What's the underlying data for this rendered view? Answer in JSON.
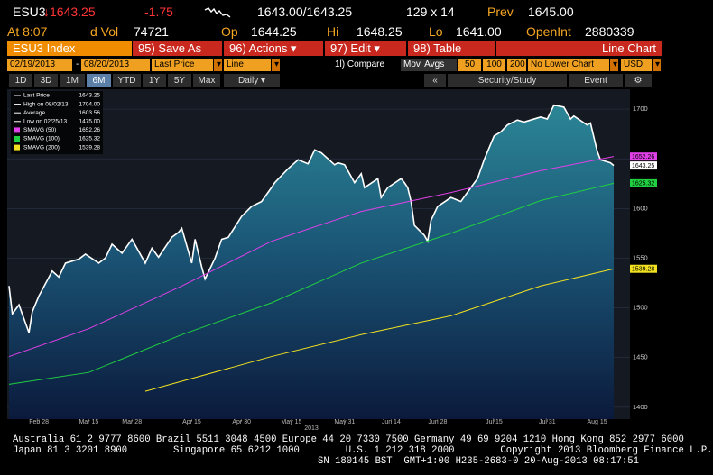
{
  "quote": {
    "ticker": "ESU3",
    "last": "↓1643.25",
    "change": "-1.75",
    "bid_ask": "1643.00/1643.25",
    "size": "129 x 14",
    "prev_label": "Prev",
    "prev": "1645.00",
    "time": "At 8:07",
    "vol_label": "d Vol",
    "vol": "74721",
    "op_label": "Op",
    "op": "1644.25",
    "hi_label": "Hi",
    "hi": "1648.25",
    "lo_label": "Lo",
    "lo": "1641.00",
    "oi_label": "OpenInt",
    "oi": "2880339"
  },
  "menu": {
    "security": "ESU3 Index",
    "buttons": [
      "95) Save As",
      "96) Actions ▾",
      "97) Edit ▾",
      "98) Table"
    ],
    "view": "Line Chart"
  },
  "controls": {
    "start": "02/19/2013",
    "dash": "-",
    "end": "08/20/2013",
    "field": "Last Price",
    "style": "Line",
    "compare": "1l) Compare",
    "mov_avgs": "Mov. Avgs",
    "ma": [
      "50",
      "100",
      "200"
    ],
    "lower": "No Lower Chart",
    "currency": "USD"
  },
  "periods": {
    "items": [
      "1D",
      "3D",
      "1M",
      "6M",
      "YTD",
      "1Y",
      "5Y",
      "Max"
    ],
    "selected": "6M",
    "freq": "Daily ▾",
    "collapse": "«",
    "study": "Security/Study",
    "event": "Event",
    "settings": "⚙"
  },
  "chart_data": {
    "type": "line",
    "xlim": [
      "2013-02-19",
      "2013-08-20"
    ],
    "xticks": [
      {
        "value": "2013-02-28",
        "label": "Feb 28"
      },
      {
        "value": "2013-03-15",
        "label": "Mar 15"
      },
      {
        "value": "2013-03-28",
        "label": "Mar 28"
      },
      {
        "value": "2013-04-15",
        "label": "Apr 15"
      },
      {
        "value": "2013-04-30",
        "label": "Apr 30"
      },
      {
        "value": "2013-05-15",
        "label": "May 15"
      },
      {
        "value": "2013-05-31",
        "label": "May 31"
      },
      {
        "value": "2013-06-14",
        "label": "Jun 14"
      },
      {
        "value": "2013-06-28",
        "label": "Jun 28"
      },
      {
        "value": "2013-07-15",
        "label": "Jul 15"
      },
      {
        "value": "2013-07-31",
        "label": "Jul 31"
      },
      {
        "value": "2013-08-15",
        "label": "Aug 15"
      }
    ],
    "xlabel": "2013",
    "ylim": [
      1388,
      1720
    ],
    "yticks": [
      1400,
      1450,
      1500,
      1550,
      1600,
      1650,
      1700
    ],
    "grid": true,
    "series": [
      {
        "name": "Last Price",
        "color": "#ffffff",
        "x": [
          "2013-02-19",
          "2013-02-20",
          "2013-02-22",
          "2013-02-25",
          "2013-02-26",
          "2013-02-28",
          "2013-03-04",
          "2013-03-06",
          "2013-03-08",
          "2013-03-12",
          "2013-03-14",
          "2013-03-18",
          "2013-03-20",
          "2013-03-22",
          "2013-03-25",
          "2013-03-28",
          "2013-04-01",
          "2013-04-03",
          "2013-04-05",
          "2013-04-09",
          "2013-04-11",
          "2013-04-12",
          "2013-04-15",
          "2013-04-16",
          "2013-04-18",
          "2013-04-19",
          "2013-04-22",
          "2013-04-24",
          "2013-04-26",
          "2013-04-30",
          "2013-05-03",
          "2013-05-06",
          "2013-05-09",
          "2013-05-10",
          "2013-05-14",
          "2013-05-17",
          "2013-05-20",
          "2013-05-22",
          "2013-05-24",
          "2013-05-28",
          "2013-05-29",
          "2013-05-31",
          "2013-06-03",
          "2013-06-05",
          "2013-06-06",
          "2013-06-10",
          "2013-06-11",
          "2013-06-13",
          "2013-06-17",
          "2013-06-18",
          "2013-06-19",
          "2013-06-20",
          "2013-06-21",
          "2013-06-24",
          "2013-06-25",
          "2013-06-26",
          "2013-06-28",
          "2013-07-02",
          "2013-07-05",
          "2013-07-08",
          "2013-07-10",
          "2013-07-12",
          "2013-07-15",
          "2013-07-17",
          "2013-07-19",
          "2013-07-22",
          "2013-07-24",
          "2013-07-26",
          "2013-07-29",
          "2013-07-31",
          "2013-08-02",
          "2013-08-05",
          "2013-08-07",
          "2013-08-08",
          "2013-08-12",
          "2013-08-13",
          "2013-08-15",
          "2013-08-16",
          "2013-08-19",
          "2013-08-20"
        ],
        "values": [
          1522,
          1494,
          1503,
          1475,
          1496,
          1512,
          1537,
          1531,
          1545,
          1549,
          1554,
          1545,
          1550,
          1564,
          1555,
          1569,
          1545,
          1560,
          1551,
          1571,
          1576,
          1580,
          1545,
          1569,
          1541,
          1529,
          1550,
          1569,
          1571,
          1592,
          1602,
          1607,
          1621,
          1626,
          1640,
          1649,
          1645,
          1659,
          1656,
          1644,
          1646,
          1644,
          1626,
          1635,
          1621,
          1630,
          1611,
          1621,
          1630,
          1626,
          1621,
          1607,
          1583,
          1573,
          1567,
          1588,
          1602,
          1611,
          1607,
          1621,
          1630,
          1649,
          1673,
          1677,
          1684,
          1689,
          1687,
          1689,
          1692,
          1690,
          1704,
          1702,
          1690,
          1693,
          1684,
          1686,
          1658,
          1649,
          1646,
          1643.25
        ]
      },
      {
        "name": "SMAVG (50)",
        "color": "#e040e8",
        "x": [
          "2013-02-19",
          "2013-03-15",
          "2013-04-12",
          "2013-05-09",
          "2013-06-05",
          "2013-07-02",
          "2013-07-29",
          "2013-08-20"
        ],
        "values": [
          1451,
          1479,
          1522,
          1567,
          1597,
          1616,
          1638,
          1652.26
        ]
      },
      {
        "name": "SMAVG (100)",
        "color": "#20d040",
        "x": [
          "2013-02-19",
          "2013-03-15",
          "2013-04-12",
          "2013-05-09",
          "2013-06-05",
          "2013-07-02",
          "2013-07-29",
          "2013-08-20"
        ],
        "values": [
          1423,
          1435,
          1473,
          1505,
          1545,
          1575,
          1608,
          1625.32
        ]
      },
      {
        "name": "SMAVG (200)",
        "color": "#f0e020",
        "x": [
          "2013-04-01",
          "2013-05-09",
          "2013-06-05",
          "2013-07-02",
          "2013-07-29",
          "2013-08-20"
        ],
        "values": [
          1416,
          1451,
          1473,
          1492,
          1522,
          1539.28
        ]
      }
    ],
    "legend": [
      {
        "label": "Last Price",
        "value": 1643.25,
        "color": "#ffffff"
      },
      {
        "label": "High on 08/02/13",
        "value": 1704.0,
        "value_label": "1704.00",
        "color": "#ffffff"
      },
      {
        "label": "Average",
        "value": 1603.56,
        "color": "#ffffff"
      },
      {
        "label": "Low on 02/25/13",
        "value": 1475.0,
        "value_label": "1475.00",
        "color": "#ffffff"
      },
      {
        "label": "SMAVG (50)",
        "value": 1652.26,
        "color": "#e040e8"
      },
      {
        "label": "SMAVG (100)",
        "value": 1625.32,
        "color": "#20d040"
      },
      {
        "label": "SMAVG (200)",
        "value": 1539.28,
        "color": "#f0e020"
      }
    ]
  },
  "footer": [
    "Australia 61 2 9777 8600 Brazil 5511 3048 4500 Europe 44 20 7330 7500 Germany 49 69 9204 1210 Hong Kong 852 2977 6000",
    "Japan 81 3 3201 8900        Singapore 65 6212 1000        U.S. 1 212 318 2000        Copyright 2013 Bloomberg Finance L.P.",
    "SN 180145 BST  GMT+1:00 H235-2683-0 20-Aug-2013 08:17:51"
  ]
}
